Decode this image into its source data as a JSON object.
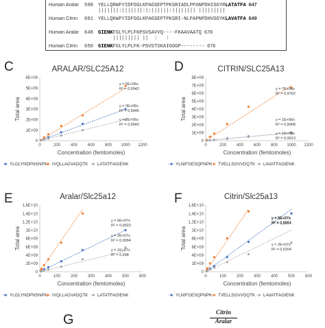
{
  "alignment": {
    "lines": [
      {
        "name": "Human Aralar",
        "start": "598",
        "seq_pre": "YELLQRWFYIDFGGLKPAGSEPTPKSRIADLPPANPDHIGGYR",
        "seq_bold": "LATATFA",
        "end": "647",
        "top": 2
      },
      {
        "name": "",
        "start": "",
        "seq_pre": "|||||||:|||||||:|:||||||:|||||||| |||||||||",
        "seq_bold": "",
        "end": "",
        "top": 12
      },
      {
        "name": "Human Citrin",
        "start": "601",
        "seq_pre": "YELLQKWFYIDFGGLKPAGSEPTPKSRI-NLPAPNPDHVGGYK",
        "seq_bold": "LAVATFA",
        "end": "649",
        "top": 22
      },
      {
        "name": "Human Aralar",
        "start": "648",
        "seq_pre": "",
        "seq_bold": "GIENK",
        "seq_post": "FGLYLPLFKPSVSAVVQ----FKAAVAATQ",
        "end": "678",
        "top": 42
      },
      {
        "name": "",
        "start": "",
        "seq_pre": "     ||||||||| ||  :   :     ",
        "seq_bold": "",
        "end": "",
        "top": 52
      },
      {
        "name": "Human Citrin",
        "start": "650",
        "seq_pre": "",
        "seq_bold": "GIENK",
        "seq_post": "FGLYLPLFK-PSVSTSKAIGGGP--------",
        "end": "676",
        "top": 62
      }
    ]
  },
  "panels": {
    "C": "C",
    "D": "D",
    "E": "E",
    "F": "F",
    "G": "G"
  },
  "fraction": {
    "numerator": "Citrin",
    "denominator": "Aralar"
  },
  "chart_data": [
    {
      "id": "C",
      "type": "scatter",
      "title": "ARALAR/SLC25A12",
      "xlabel": "Concentration (femtomoles)",
      "ylabel": "Total area",
      "xlim": [
        0,
        1200
      ],
      "ylim": [
        0,
        6000000000
      ],
      "xticks": [
        "0",
        "200",
        "400",
        "600",
        "800",
        "1000",
        "1200"
      ],
      "yticks": [
        "0",
        "1E+09",
        "2E+09",
        "3E+09",
        "4E+09",
        "5E+09",
        "6E+09"
      ],
      "grid": false,
      "legend_position": "bottom",
      "series": [
        {
          "name": "YLGLYNDPNSNPK",
          "color": "#4472c4",
          "fit_slope": 3000000,
          "x": [
            10,
            50,
            100,
            250,
            500,
            1000
          ],
          "y": [
            30000000,
            150000000,
            320000000,
            800000000,
            1600000000,
            3000000000
          ],
          "eq": "y = 3E+06x",
          "r2": "R² = 0,9945"
        },
        {
          "name": "IVQLLAGVADQTK",
          "color": "#ed7d31",
          "fit_slope": 5000000,
          "x": [
            10,
            50,
            100,
            250,
            500,
            1000
          ],
          "y": [
            50000000,
            300000000,
            600000000,
            1400000000,
            2400000000,
            5200000000
          ],
          "eq": "y = 5E+06x",
          "r2": "R² = 0,9942"
        },
        {
          "name": "LATATFAGIENK",
          "color": "#a5a5a5",
          "fit_slope": 2000000,
          "x": [
            10,
            50,
            100,
            250,
            500,
            1000
          ],
          "y": [
            20000000,
            100000000,
            200000000,
            500000000,
            1000000000,
            2000000000
          ],
          "eq": "y = 2E+06x",
          "r2": "R² = 0,9942"
        }
      ]
    },
    {
      "id": "D",
      "type": "scatter",
      "title": "CITRIN/SLC25A13",
      "xlabel": "Concentration (femtomoles)",
      "ylabel": "Total area",
      "xlim": [
        0,
        1200
      ],
      "ylim": [
        0,
        8000000000
      ],
      "xticks": [
        "0",
        "200",
        "400",
        "600",
        "800",
        "1000",
        "1200"
      ],
      "yticks": [
        "0",
        "1E+09",
        "2E+09",
        "3E+09",
        "4E+09",
        "5E+09",
        "6E+09",
        "7E+09",
        "8E+09"
      ],
      "grid": false,
      "legend_position": "bottom",
      "series": [
        {
          "name": "YLNIFGESQPNPK",
          "color": "#4472c4",
          "fit_slope": 1000000,
          "x": [
            10,
            50,
            100,
            250,
            500,
            1000
          ],
          "y": [
            10000000,
            50000000,
            100000000,
            280000000,
            550000000,
            1000000000
          ],
          "eq": "y = 1E+06x",
          "r2": "R² = 0,9908"
        },
        {
          "name": "TVELLSGVVDQTK",
          "color": "#ed7d31",
          "fit_slope": 7000000,
          "x": [
            10,
            50,
            100,
            250,
            500,
            1000
          ],
          "y": [
            80000000,
            500000000,
            900000000,
            2100000000,
            4300000000,
            6700000000
          ],
          "eq": "y = 7E+06x",
          "r2": "R² = 0,9762"
        },
        {
          "name": "LAVATFAGIENK",
          "color": "#a5a5a5",
          "fit_slope": 1000000,
          "x": [
            10,
            50,
            100,
            250,
            500,
            1000
          ],
          "y": [
            8000000,
            40000000,
            90000000,
            230000000,
            480000000,
            950000000
          ],
          "eq": "y = 1E+06x",
          "r2": "R² = 0,9913"
        }
      ]
    },
    {
      "id": "E",
      "type": "scatter",
      "title": "Aralar/Slc25a12",
      "xlabel": "Concentration (femtomoles)",
      "ylabel": "Total area",
      "xlim": [
        0,
        600
      ],
      "ylim": [
        0,
        16000000000
      ],
      "xticks": [
        "0",
        "100",
        "200",
        "300",
        "400",
        "500",
        "600"
      ],
      "yticks": [
        "0",
        "2E+09",
        "4E+09",
        "6E+09",
        "8E+09",
        "1E+10",
        "1,2E+10",
        "1,4E+10",
        "1,6E+10"
      ],
      "grid": false,
      "legend_position": "bottom",
      "series": [
        {
          "name": "YLGLYNDPNSNPK",
          "color": "#4472c4",
          "fit_slope": 20000000,
          "x": [
            5,
            10,
            25,
            50,
            125,
            250,
            500
          ],
          "y": [
            100000000,
            250000000,
            600000000,
            1100000000,
            2500000000,
            5200000000,
            10000000000
          ],
          "eq": "y = 2E+07x",
          "r2": "R² = 0,9994"
        },
        {
          "name": "IVQLLAGVADQTK",
          "color": "#ed7d31",
          "fit_slope": 60000000,
          "x": [
            5,
            10,
            25,
            50,
            125,
            250
          ],
          "y": [
            300000000,
            700000000,
            1600000000,
            3000000000,
            7000000000,
            14000000000
          ],
          "eq": "y = 6E+07x",
          "r2": "R² = 0,9923"
        },
        {
          "name": "LATATFAGIENK",
          "color": "#a5a5a5",
          "fit_slope": 10000000,
          "x": [
            5,
            10,
            25,
            50,
            125,
            250,
            500
          ],
          "y": [
            50000000,
            100000000,
            250000000,
            500000000,
            1200000000,
            3000000000,
            5800000000
          ],
          "eq": "y = 1E+07x",
          "r2": "R² = 0,998"
        }
      ]
    },
    {
      "id": "F",
      "type": "scatter",
      "title": "Citrin/Slc25a13",
      "xlabel": "Concentration (femtomoles)",
      "ylabel": "Total area",
      "xlim": [
        0,
        600
      ],
      "ylim": [
        0,
        16000000000
      ],
      "xticks": [
        "0",
        "100",
        "200",
        "300",
        "400",
        "500",
        "600"
      ],
      "yticks": [
        "0",
        "2E+09",
        "4E+09",
        "6E+09",
        "8E+09",
        "1E+10",
        "1,2E+10",
        "1,4E+10",
        "1,6E+10"
      ],
      "grid": false,
      "legend_position": "bottom",
      "series": [
        {
          "name": "YLNIFGESQPNPK",
          "color": "#4472c4",
          "fit_slope": 30000000,
          "x": [
            5,
            10,
            25,
            50,
            125,
            250,
            500
          ],
          "y": [
            150000000,
            300000000,
            700000000,
            1400000000,
            3500000000,
            7200000000,
            14000000000
          ],
          "eq": "y = 3E+07x",
          "r2": "R² = 0,9994"
        },
        {
          "name": "TVELLSGVVDQTK",
          "color": "#ed7d31",
          "fit_slope": 60000000,
          "x": [
            5,
            10,
            25,
            50,
            125,
            250
          ],
          "y": [
            300000000,
            800000000,
            2000000000,
            3500000000,
            8000000000,
            14500000000
          ],
          "eq": "y = 6E+07x",
          "r2": "R² = 0,9961"
        },
        {
          "name": "LAVATFAGIENK",
          "color": "#a5a5a5",
          "fit_slope": 20000000,
          "x": [
            5,
            10,
            25,
            50,
            125,
            250,
            500
          ],
          "y": [
            80000000,
            200000000,
            500000000,
            1000000000,
            2300000000,
            4200000000,
            7000000000
          ],
          "eq": "y = 2E+07x",
          "r2": "R² = 0,9204"
        }
      ]
    }
  ]
}
